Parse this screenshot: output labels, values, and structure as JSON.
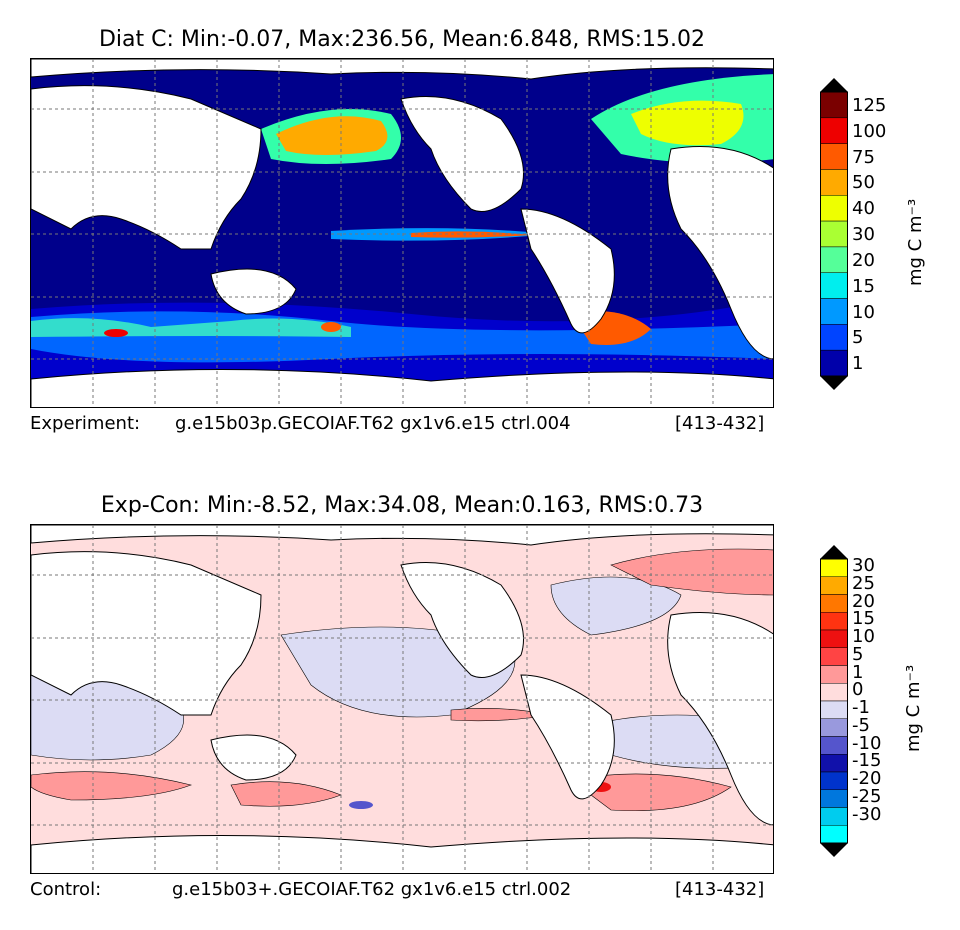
{
  "top": {
    "title": "Diat C: Min:-0.07, Max:236.56, Mean:6.848, RMS:15.02",
    "footer_label": "Experiment:",
    "footer_case": "g.e15b03p.GECOIAF.T62 gx1v6.e15 ctrl.004",
    "footer_years": "[413-432]",
    "colorbar": {
      "units": "mg C m⁻³",
      "ticks": [
        "125",
        "100",
        "75",
        "50",
        "40",
        "30",
        "20",
        "15",
        "10",
        "5",
        "1"
      ],
      "colors": [
        "#7a0000",
        "#ee0000",
        "#ff5a00",
        "#ffaa00",
        "#eeff00",
        "#aaff33",
        "#55ff99",
        "#00eeee",
        "#0099ff",
        "#0044ff",
        "#0000aa"
      ],
      "over_color": "#000000",
      "under_color": "#000000"
    }
  },
  "bottom": {
    "title": "Exp-Con: Min:-8.52, Max:34.08, Mean:0.163, RMS:0.73",
    "footer_label": "Control:",
    "footer_case": "g.e15b03+.GECOIAF.T62 gx1v6.e15 ctrl.002",
    "footer_years": "[413-432]",
    "colorbar": {
      "units": "mg C m⁻³",
      "ticks": [
        "30",
        "25",
        "20",
        "15",
        "10",
        "5",
        "1",
        "0",
        "-1",
        "-5",
        "-10",
        "-15",
        "-20",
        "-25",
        "-30"
      ],
      "colors": [
        "#ffff00",
        "#ffaa00",
        "#ff7700",
        "#ff3311",
        "#ee1111",
        "#ff4444",
        "#ff9999",
        "#ffdddd",
        "#dcdcf4",
        "#9999dd",
        "#5555cc",
        "#1111aa",
        "#0033cc",
        "#0077dd",
        "#00ccee",
        "#00ffff"
      ],
      "over_color": "#000000",
      "under_color": "#000000"
    }
  },
  "colors": {
    "land": "#ffffff",
    "ocean_top_base": "#00008b",
    "ocean_bottom_base": "#ffdcdc",
    "grid": "#777777"
  }
}
